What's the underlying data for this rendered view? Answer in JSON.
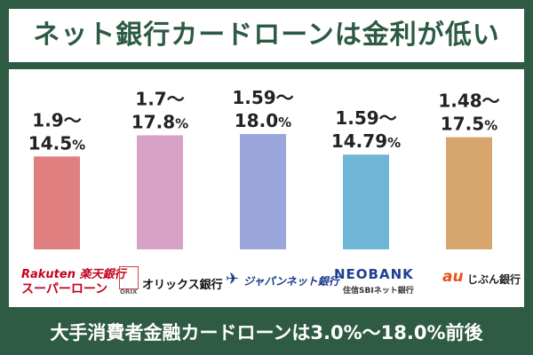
{
  "title": "ネット銀行カードローンは金利が低い",
  "footer": "大手消費者金融カードローンは3.0%〜18.0%前後",
  "colors": {
    "background": "#2f5b45",
    "title": "#2c5a43",
    "bars": [
      "#e07f7f",
      "#d8a2c8",
      "#9aa6dc",
      "#6fb6d6",
      "#d7a66f"
    ]
  },
  "chart_data": {
    "type": "bar",
    "categories": [
      "楽天銀行 スーパーローン",
      "オリックス銀行",
      "ジャパンネット銀行",
      "NEOBANK 住信SBIネット銀行",
      "auじぶん銀行"
    ],
    "values": [
      14.5,
      17.8,
      18.0,
      14.79,
      17.5
    ],
    "ranges": [
      {
        "min": 1.9,
        "max": 14.5,
        "min_label": "1.9〜",
        "max_label": "14.5",
        "unit": "%"
      },
      {
        "min": 1.7,
        "max": 17.8,
        "min_label": "1.7〜",
        "max_label": "17.8",
        "unit": "%"
      },
      {
        "min": 1.59,
        "max": 18.0,
        "min_label": "1.59〜",
        "max_label": "18.0",
        "unit": "%"
      },
      {
        "min": 1.59,
        "max": 14.79,
        "min_label": "1.59〜",
        "max_label": "14.79",
        "unit": "%"
      },
      {
        "min": 1.48,
        "max": 17.5,
        "min_label": "1.48〜",
        "max_label": "17.5",
        "unit": "%"
      }
    ],
    "ylim": [
      0,
      18.0
    ],
    "grid": false,
    "legend": "none"
  },
  "logos": {
    "rakuten": {
      "line1": "Rakuten 楽天銀行",
      "line2": "スーパーローン"
    },
    "orix": {
      "mark": "ORIX",
      "name": "オリックス銀行"
    },
    "japannet": {
      "mark": "✈",
      "name": "ジャパンネット銀行"
    },
    "neobank": {
      "main": "NEOBANK",
      "sub": "住信SBIネット銀行"
    },
    "au": {
      "mark": "au",
      "name": "じぶん銀行"
    }
  }
}
